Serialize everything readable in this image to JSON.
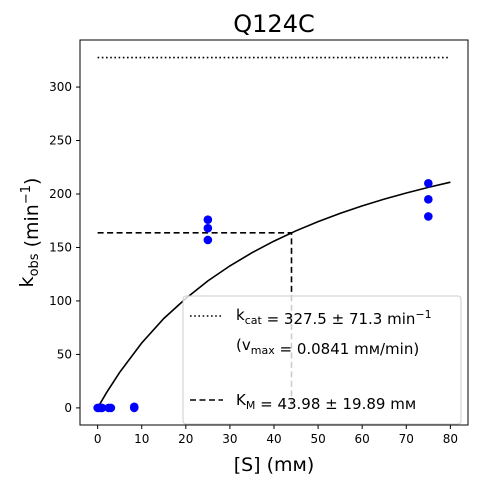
{
  "chart_data": {
    "type": "scatter",
    "title": "Q124C",
    "xlabel": "[S] (mм)",
    "ylabel": "k_obs (min⁻¹)",
    "xlim": [
      -4,
      84
    ],
    "ylim": [
      -16,
      344
    ],
    "xticks": [
      0,
      10,
      20,
      30,
      40,
      50,
      60,
      70,
      80
    ],
    "yticks": [
      0,
      50,
      100,
      150,
      200,
      250,
      300
    ],
    "grid": false,
    "legend_position": "lower-right",
    "colors": {
      "points": "#0000ff",
      "lines": "#000000"
    },
    "series": [
      {
        "kind": "points",
        "x": [
          0,
          0.3,
          0.8,
          1,
          2.5,
          3,
          8.3,
          8.3,
          25,
          25,
          25,
          75,
          75,
          75
        ],
        "y": [
          0,
          0,
          0,
          0,
          0,
          0,
          0,
          1,
          157,
          168,
          176,
          179,
          195,
          210
        ]
      },
      {
        "kind": "fit",
        "x": [
          0,
          2,
          5,
          10,
          15,
          20,
          25,
          30,
          35,
          40,
          45,
          50,
          55,
          60,
          65,
          70,
          75,
          80
        ],
        "y": [
          0,
          14.2,
          33.3,
          60.7,
          83.6,
          102.3,
          118.7,
          132.8,
          145.1,
          156.0,
          165.6,
          174.2,
          181.9,
          188.9,
          195.2,
          200.9,
          206.2,
          211.0
        ]
      },
      {
        "kind": "kcat-line",
        "legend_label": "k_cat = 327.5 ± 71.3 min⁻¹",
        "x": [
          0,
          80
        ],
        "y": [
          327.5,
          327.5
        ]
      },
      {
        "kind": "km-line",
        "legend_label": "K_M = 43.98 ± 19.89 mм",
        "x": [
          0,
          43.98,
          43.98
        ],
        "y": [
          163.75,
          163.75,
          0
        ]
      }
    ],
    "vmax_note": "(v_max = 0.0841 mм/min)"
  }
}
